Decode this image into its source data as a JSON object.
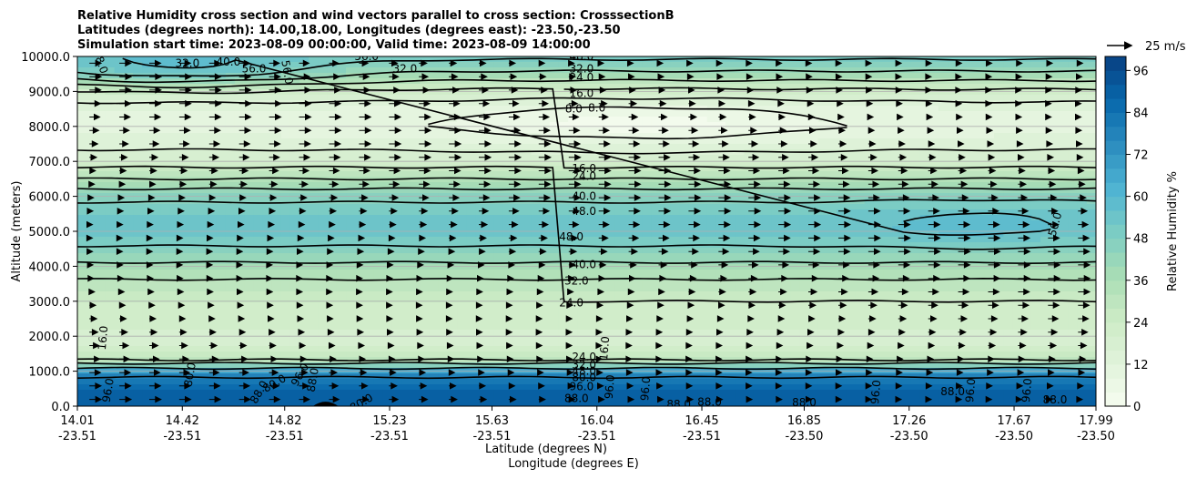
{
  "chart_data": {
    "type": "heatmap",
    "title_lines": [
      "Relative Humidity cross section and wind vectors parallel to cross section: CrosssectionB",
      "Latitudes (degrees north): 14.00,18.00, Longitudes (degrees east): -23.50,-23.50",
      "Simulation start time: 2023-08-09 00:00:00, Valid time: 2023-08-09 14:00:00"
    ],
    "xlabel": "Latitude (degrees N)",
    "xlabel2": "Longitude (degrees E)",
    "ylabel": "Altitude (meters)",
    "colorbar_label": "Relative Humidity %",
    "quiver_key_label": "25 m/s",
    "x_ticks": [
      {
        "lat": "14.01",
        "lon": "-23.51"
      },
      {
        "lat": "14.42",
        "lon": "-23.51"
      },
      {
        "lat": "14.82",
        "lon": "-23.51"
      },
      {
        "lat": "15.23",
        "lon": "-23.51"
      },
      {
        "lat": "15.63",
        "lon": "-23.51"
      },
      {
        "lat": "16.04",
        "lon": "-23.51"
      },
      {
        "lat": "16.45",
        "lon": "-23.51"
      },
      {
        "lat": "16.85",
        "lon": "-23.50"
      },
      {
        "lat": "17.26",
        "lon": "-23.50"
      },
      {
        "lat": "17.67",
        "lon": "-23.50"
      },
      {
        "lat": "17.99",
        "lon": "-23.50"
      }
    ],
    "x_range": [
      14.01,
      17.99
    ],
    "y_ticks": [
      "0.0",
      "1000.0",
      "2000.0",
      "3000.0",
      "4000.0",
      "5000.0",
      "6000.0",
      "7000.0",
      "8000.0",
      "9000.0",
      "10000.0"
    ],
    "y_range": [
      0,
      10000
    ],
    "y_grid": true,
    "colorbar_ticks": [
      "0",
      "12",
      "24",
      "36",
      "48",
      "60",
      "72",
      "84",
      "96"
    ],
    "colorbar_range": [
      0,
      100
    ],
    "colormap": "GnBu",
    "rh_profile": [
      {
        "alt": 0,
        "rh": 92
      },
      {
        "alt": 200,
        "rh": 90
      },
      {
        "alt": 500,
        "rh": 88
      },
      {
        "alt": 800,
        "rh": 82
      },
      {
        "alt": 1000,
        "rh": 66
      },
      {
        "alt": 1200,
        "rh": 42
      },
      {
        "alt": 1400,
        "rh": 26
      },
      {
        "alt": 1700,
        "rh": 20
      },
      {
        "alt": 2000,
        "rh": 19
      },
      {
        "alt": 2500,
        "rh": 21
      },
      {
        "alt": 3000,
        "rh": 24
      },
      {
        "alt": 3500,
        "rh": 30
      },
      {
        "alt": 4000,
        "rh": 38
      },
      {
        "alt": 4500,
        "rh": 47
      },
      {
        "alt": 5000,
        "rh": 53
      },
      {
        "alt": 5500,
        "rh": 52
      },
      {
        "alt": 6000,
        "rh": 46
      },
      {
        "alt": 6500,
        "rh": 32
      },
      {
        "alt": 7000,
        "rh": 20
      },
      {
        "alt": 7500,
        "rh": 14
      },
      {
        "alt": 8000,
        "rh": 10
      },
      {
        "alt": 8500,
        "rh": 12
      },
      {
        "alt": 9000,
        "rh": 22
      },
      {
        "alt": 9500,
        "rh": 38
      },
      {
        "alt": 10000,
        "rh": 50
      }
    ],
    "contour_levels": [
      8,
      16,
      24,
      32,
      40,
      48,
      56,
      80,
      88,
      96
    ],
    "contour_labels": [
      {
        "text": "48.0",
        "lat": 14.1,
        "alt": 9850,
        "rot": 70
      },
      {
        "text": "32.0",
        "lat": 14.44,
        "alt": 9800,
        "rot": 0
      },
      {
        "text": "40.0",
        "lat": 14.6,
        "alt": 9850,
        "rot": 0
      },
      {
        "text": "56.0",
        "lat": 14.7,
        "alt": 9650,
        "rot": 0
      },
      {
        "text": "56.0",
        "lat": 14.83,
        "alt": 9550,
        "rot": 80
      },
      {
        "text": "56.0",
        "lat": 15.14,
        "alt": 10000,
        "rot": 0
      },
      {
        "text": "32.0",
        "lat": 15.29,
        "alt": 9650,
        "rot": 0
      },
      {
        "text": "48.0",
        "lat": 15.98,
        "alt": 10000,
        "rot": 0
      },
      {
        "text": "32.0",
        "lat": 15.98,
        "alt": 9650,
        "rot": 0
      },
      {
        "text": "24.0",
        "lat": 15.98,
        "alt": 9400,
        "rot": 0
      },
      {
        "text": "16.0",
        "lat": 15.98,
        "alt": 8950,
        "rot": 0
      },
      {
        "text": "8.0",
        "lat": 15.95,
        "alt": 8500,
        "rot": 0
      },
      {
        "text": "8.0",
        "lat": 16.04,
        "alt": 8530,
        "rot": 0
      },
      {
        "text": "16.0",
        "lat": 15.99,
        "alt": 6800,
        "rot": 0
      },
      {
        "text": "24.0",
        "lat": 15.99,
        "alt": 6580,
        "rot": 0
      },
      {
        "text": "40.0",
        "lat": 15.99,
        "alt": 6000,
        "rot": 0
      },
      {
        "text": "48.0",
        "lat": 15.99,
        "alt": 5570,
        "rot": 0
      },
      {
        "text": "48.0",
        "lat": 15.94,
        "alt": 4850,
        "rot": 0
      },
      {
        "text": "40.0",
        "lat": 15.99,
        "alt": 4050,
        "rot": 0
      },
      {
        "text": "32.0",
        "lat": 15.96,
        "alt": 3580,
        "rot": 0
      },
      {
        "text": "24.0",
        "lat": 15.94,
        "alt": 2950,
        "rot": 0
      },
      {
        "text": "56.0",
        "lat": 17.83,
        "alt": 5200,
        "rot": -75
      },
      {
        "text": "16.0",
        "lat": 14.11,
        "alt": 1950,
        "rot": -85
      },
      {
        "text": "24.0",
        "lat": 15.99,
        "alt": 1400,
        "rot": 0
      },
      {
        "text": "16.0",
        "lat": 16.07,
        "alt": 1650,
        "rot": -85
      },
      {
        "text": "32.0",
        "lat": 15.99,
        "alt": 1180,
        "rot": 0
      },
      {
        "text": "48.0",
        "lat": 15.99,
        "alt": 1000,
        "rot": 0
      },
      {
        "text": "80.0",
        "lat": 15.99,
        "alt": 820,
        "rot": 0
      },
      {
        "text": "96.0",
        "lat": 15.98,
        "alt": 560,
        "rot": 0
      },
      {
        "text": "88.0",
        "lat": 15.96,
        "alt": 220,
        "rot": 0
      },
      {
        "text": "96.0",
        "lat": 14.13,
        "alt": 450,
        "rot": -80
      },
      {
        "text": "80.0",
        "lat": 14.45,
        "alt": 900,
        "rot": -80
      },
      {
        "text": "80.0",
        "lat": 14.78,
        "alt": 650,
        "rot": -30
      },
      {
        "text": "88.0",
        "lat": 14.72,
        "alt": 400,
        "rot": -60
      },
      {
        "text": "96.0",
        "lat": 14.88,
        "alt": 900,
        "rot": -60
      },
      {
        "text": "88.0",
        "lat": 14.93,
        "alt": 750,
        "rot": -80
      },
      {
        "text": "80.0",
        "lat": 15.12,
        "alt": 100,
        "rot": -30
      },
      {
        "text": "96.0",
        "lat": 16.09,
        "alt": 550,
        "rot": -85
      },
      {
        "text": "96.0",
        "lat": 16.23,
        "alt": 500,
        "rot": -85
      },
      {
        "text": "88.0",
        "lat": 16.36,
        "alt": 50,
        "rot": 0
      },
      {
        "text": "88.0",
        "lat": 16.48,
        "alt": 120,
        "rot": 0
      },
      {
        "text": "88.0",
        "lat": 16.85,
        "alt": 100,
        "rot": 0
      },
      {
        "text": "96.0",
        "lat": 17.13,
        "alt": 400,
        "rot": -85
      },
      {
        "text": "88.0",
        "lat": 17.43,
        "alt": 420,
        "rot": 0
      },
      {
        "text": "96.0",
        "lat": 17.5,
        "alt": 450,
        "rot": -85
      },
      {
        "text": "96.0",
        "lat": 17.72,
        "alt": 450,
        "rot": -85
      },
      {
        "text": "88.0",
        "lat": 17.83,
        "alt": 180,
        "rot": 0
      }
    ],
    "wind": {
      "direction": "parallel to cross section, toward increasing latitude",
      "speed_range_m_s": [
        3,
        12
      ]
    },
    "terrain": {
      "lat": 14.98,
      "alt": 100
    }
  }
}
